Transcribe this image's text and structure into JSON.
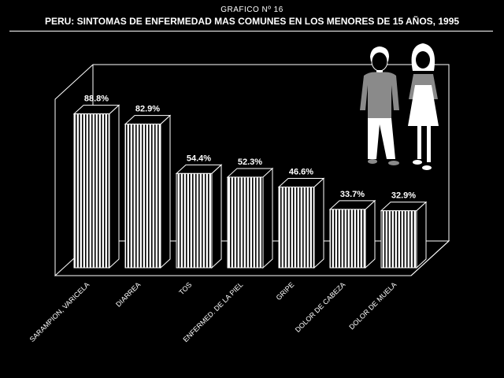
{
  "header": {
    "figure_label": "GRAFICO Nº 16",
    "title": "PERU: SINTOMAS DE ENFERMEDAD MAS COMUNES EN LOS MENORES DE 15 AÑOS, 1995"
  },
  "chart_data": {
    "type": "bar",
    "title": "PERU: SINTOMAS DE ENFERMEDAD MAS COMUNES EN LOS MENORES DE 15 AÑOS, 1995",
    "categories": [
      "SARAMPION, VARICELA",
      "DIARREA",
      "TOS",
      "ENFERMED. DE LA PIEL",
      "GRIPE",
      "DOLOR DE CABEZA",
      "DOLOR DE MUELA"
    ],
    "values": [
      88.8,
      82.9,
      54.4,
      52.3,
      46.6,
      33.7,
      32.9
    ],
    "value_labels": [
      "88.8%",
      "82.9%",
      "54.4%",
      "52.3%",
      "46.6%",
      "33.7%",
      "32.9%"
    ],
    "ylim": [
      0,
      100
    ],
    "grid": false,
    "style": "3d-hatched",
    "colors": {
      "background": "#000000",
      "bar_fill": "#ffffff",
      "bar_hatch": "#000000",
      "line": "#ffffff"
    },
    "illustration": "boy-and-girl"
  }
}
